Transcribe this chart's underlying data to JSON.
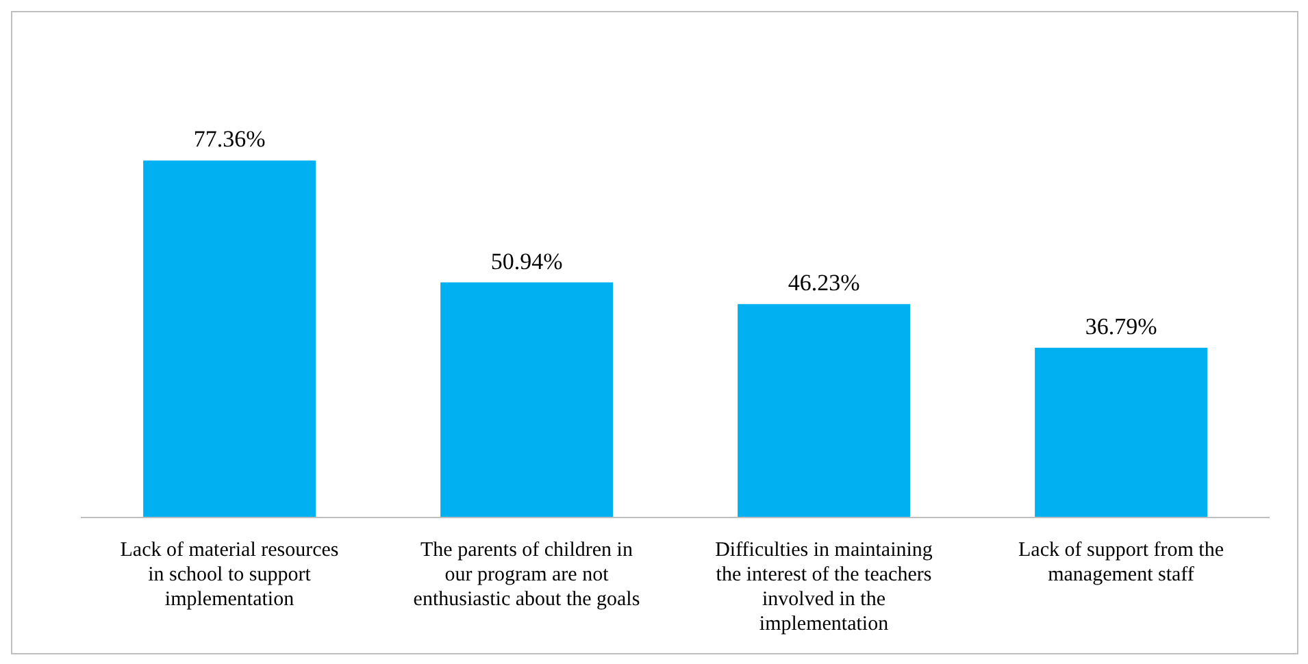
{
  "chart_data": {
    "type": "bar",
    "categories": [
      "Lack of material resources in school to support implementation",
      "The parents of children in our program are not enthusiastic about the goals",
      "Difficulties in maintaining the interest of the teachers involved in the implementation",
      "Lack of support from the management staff"
    ],
    "values": [
      77.36,
      50.94,
      46.23,
      36.79
    ],
    "value_labels": [
      "77.36%",
      "50.94%",
      "46.23%",
      "36.79%"
    ],
    "color": "#00b0f0",
    "grid": false,
    "legend": false
  }
}
